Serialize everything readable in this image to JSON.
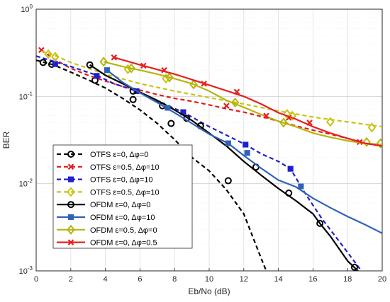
{
  "chart_data": {
    "type": "line",
    "xlabel": "Eb/No (dB)",
    "ylabel": "BER",
    "xlim": [
      0,
      20
    ],
    "ylim": [
      0.001,
      1
    ],
    "yscale": "log",
    "grid": true,
    "legend_position": "bottom-left",
    "x_ticks": [
      0,
      2,
      4,
      6,
      8,
      10,
      12,
      14,
      16,
      18,
      20
    ],
    "y_ticks": [
      {
        "value": 0.001,
        "base": "10",
        "exp": "-3"
      },
      {
        "value": 0.01,
        "base": "10",
        "exp": "-2"
      },
      {
        "value": 0.1,
        "base": "10",
        "exp": "-1"
      },
      {
        "value": 1,
        "base": "10",
        "exp": "0"
      }
    ],
    "series": [
      {
        "name": "OTFS ε=0, Δφ=0",
        "color": "#000000",
        "dash": "dashed",
        "marker": "circle",
        "points": [
          [
            0,
            0.26
          ],
          [
            1,
            0.23
          ],
          [
            2,
            0.19
          ],
          [
            3,
            0.155
          ],
          [
            4,
            0.125
          ],
          [
            5,
            0.095
          ],
          [
            6,
            0.07
          ],
          [
            7,
            0.049
          ],
          [
            8,
            0.032
          ],
          [
            9,
            0.02
          ],
          [
            10,
            0.014
          ],
          [
            11,
            0.0085
          ],
          [
            12,
            0.0045
          ],
          [
            13,
            0.0014
          ],
          [
            13.3,
            0.001
          ]
        ],
        "markers": [
          [
            0.4,
            0.245
          ],
          [
            0.9,
            0.233
          ],
          [
            3.4,
            0.153
          ],
          [
            5.6,
            0.092
          ],
          [
            7.8,
            0.049
          ],
          [
            11.1,
            0.0108
          ]
        ]
      },
      {
        "name": "OTFS ε=0.5, Δφ=10",
        "color": "#e41a1c",
        "dash": "dashed",
        "marker": "x",
        "points": [
          [
            0.3,
            0.34
          ],
          [
            1,
            0.27
          ],
          [
            2,
            0.21
          ],
          [
            3,
            0.175
          ],
          [
            4,
            0.15
          ],
          [
            5,
            0.13
          ],
          [
            6,
            0.118
          ],
          [
            7,
            0.105
          ],
          [
            8,
            0.095
          ],
          [
            9,
            0.088
          ],
          [
            10,
            0.08
          ],
          [
            11,
            0.072
          ],
          [
            12,
            0.066
          ],
          [
            13,
            0.059
          ],
          [
            14,
            0.052
          ],
          [
            15,
            0.046
          ],
          [
            16,
            0.041
          ],
          [
            17,
            0.037
          ],
          [
            18,
            0.033
          ],
          [
            19,
            0.029
          ],
          [
            20,
            0.027
          ]
        ],
        "markers": [
          [
            0.3,
            0.34
          ],
          [
            11,
            0.078
          ],
          [
            14.6,
            0.057
          ],
          [
            18.7,
            0.03
          ]
        ]
      },
      {
        "name": "OTFS ε=0, Δφ=10",
        "color": "#1f1fd0",
        "dash": "dashed",
        "marker": "square",
        "points": [
          [
            0,
            0.29
          ],
          [
            2,
            0.22
          ],
          [
            3.5,
            0.175
          ],
          [
            4.5,
            0.14
          ],
          [
            5.8,
            0.115
          ],
          [
            7,
            0.088
          ],
          [
            8.5,
            0.066
          ],
          [
            10,
            0.045
          ],
          [
            11,
            0.036
          ],
          [
            12.1,
            0.028
          ],
          [
            13,
            0.022
          ],
          [
            14,
            0.018
          ],
          [
            14.7,
            0.0148
          ],
          [
            15.5,
            0.008
          ],
          [
            16.5,
            0.004
          ],
          [
            17.5,
            0.0022
          ],
          [
            18.5,
            0.0012
          ],
          [
            18.8,
            0.001
          ]
        ],
        "markers": [
          [
            1.1,
            0.235
          ],
          [
            3.5,
            0.172
          ],
          [
            5.8,
            0.115
          ],
          [
            8.5,
            0.066
          ],
          [
            12.1,
            0.028
          ],
          [
            14.7,
            0.0148
          ]
        ]
      },
      {
        "name": "OTFS ε=0.5, Δφ=10",
        "color": "#c9c413",
        "dash": "dashed",
        "marker": "diamond",
        "points": [
          [
            0.3,
            0.33
          ],
          [
            1,
            0.3
          ],
          [
            2,
            0.245
          ],
          [
            4,
            0.18
          ],
          [
            6,
            0.14
          ],
          [
            8,
            0.115
          ],
          [
            10,
            0.097
          ],
          [
            12,
            0.082
          ],
          [
            14,
            0.068
          ],
          [
            15,
            0.063
          ],
          [
            16,
            0.058
          ],
          [
            18,
            0.051
          ],
          [
            20,
            0.045
          ]
        ],
        "markers": [
          [
            0.7,
            0.305
          ],
          [
            1.1,
            0.285
          ],
          [
            5.3,
            0.205
          ],
          [
            7.5,
            0.16
          ],
          [
            14.5,
            0.063
          ],
          [
            14.8,
            0.06
          ],
          [
            17,
            0.051
          ],
          [
            19.4,
            0.044
          ]
        ]
      },
      {
        "name": "OFDM ε=0, Δφ=0",
        "color": "#000000",
        "dash": "solid",
        "marker": "circle",
        "points": [
          [
            3.1,
            0.23
          ],
          [
            4,
            0.175
          ],
          [
            5,
            0.14
          ],
          [
            6,
            0.112
          ],
          [
            7,
            0.09
          ],
          [
            8,
            0.07
          ],
          [
            9,
            0.053
          ],
          [
            10,
            0.038
          ],
          [
            11,
            0.027
          ],
          [
            12,
            0.018
          ],
          [
            13,
            0.0125
          ],
          [
            14,
            0.0088
          ],
          [
            15,
            0.0064
          ],
          [
            16,
            0.0045
          ],
          [
            16.4,
            0.0035
          ],
          [
            17,
            0.0025
          ],
          [
            18,
            0.0013
          ],
          [
            18.6,
            0.001
          ]
        ],
        "markers": [
          [
            3.1,
            0.23
          ],
          [
            5.6,
            0.115
          ],
          [
            7.3,
            0.078
          ],
          [
            8.7,
            0.056
          ],
          [
            9.5,
            0.046
          ],
          [
            12.7,
            0.0155
          ],
          [
            14.6,
            0.0078
          ],
          [
            16.4,
            0.0035
          ],
          [
            18.4,
            0.0011
          ]
        ]
      },
      {
        "name": "OFDM ε=0, Δφ=10",
        "color": "#2f62b7",
        "dash": "solid",
        "marker": "square",
        "points": [
          [
            4.1,
            0.2
          ],
          [
            5,
            0.145
          ],
          [
            6,
            0.11
          ],
          [
            7,
            0.085
          ],
          [
            8,
            0.065
          ],
          [
            9,
            0.049
          ],
          [
            10,
            0.037
          ],
          [
            11.1,
            0.029
          ],
          [
            12,
            0.021
          ],
          [
            13,
            0.015
          ],
          [
            14,
            0.011
          ],
          [
            15,
            0.0092
          ],
          [
            16,
            0.0068
          ],
          [
            17,
            0.0053
          ],
          [
            18,
            0.0042
          ],
          [
            19,
            0.0034
          ],
          [
            20,
            0.0027
          ]
        ],
        "markers": [
          [
            4.1,
            0.2
          ],
          [
            7.6,
            0.074
          ],
          [
            11.1,
            0.029
          ],
          [
            12.2,
            0.0225
          ],
          [
            15.3,
            0.0093
          ]
        ]
      },
      {
        "name": "OFDM ε=0.5, Δφ=0",
        "color": "#b5b50f",
        "dash": "solid",
        "marker": "diamond",
        "points": [
          [
            3.9,
            0.25
          ],
          [
            5,
            0.22
          ],
          [
            6,
            0.2
          ],
          [
            7,
            0.18
          ],
          [
            8,
            0.16
          ],
          [
            9,
            0.14
          ],
          [
            10,
            0.115
          ],
          [
            11,
            0.09
          ],
          [
            12,
            0.075
          ],
          [
            13,
            0.062
          ],
          [
            14,
            0.052
          ],
          [
            15,
            0.045
          ],
          [
            16,
            0.038
          ],
          [
            17,
            0.034
          ],
          [
            18,
            0.031
          ],
          [
            19,
            0.029
          ],
          [
            20,
            0.028
          ]
        ],
        "markers": [
          [
            3.9,
            0.25
          ],
          [
            5.5,
            0.21
          ],
          [
            7.7,
            0.165
          ],
          [
            9.1,
            0.137
          ],
          [
            11.5,
            0.085
          ],
          [
            14.3,
            0.05
          ],
          [
            19.1,
            0.03
          ],
          [
            19.9,
            0.029
          ]
        ]
      },
      {
        "name": "OFDM ε=0, Δφ=0.5",
        "color": "#e81f1f",
        "dash": "solid",
        "marker": "x",
        "points": [
          [
            4.5,
            0.28
          ],
          [
            6,
            0.23
          ],
          [
            8,
            0.18
          ],
          [
            10,
            0.135
          ],
          [
            12,
            0.1
          ],
          [
            13,
            0.082
          ],
          [
            14,
            0.065
          ],
          [
            15,
            0.055
          ],
          [
            16,
            0.045
          ],
          [
            17,
            0.038
          ],
          [
            18,
            0.033
          ],
          [
            19,
            0.029
          ],
          [
            20,
            0.027
          ]
        ],
        "markers": [
          [
            4.5,
            0.28
          ],
          [
            6.2,
            0.225
          ],
          [
            7.4,
            0.2
          ],
          [
            9.7,
            0.14
          ],
          [
            11.6,
            0.113
          ],
          [
            13.3,
            0.06
          ],
          [
            15.8,
            0.05
          ]
        ]
      }
    ]
  }
}
